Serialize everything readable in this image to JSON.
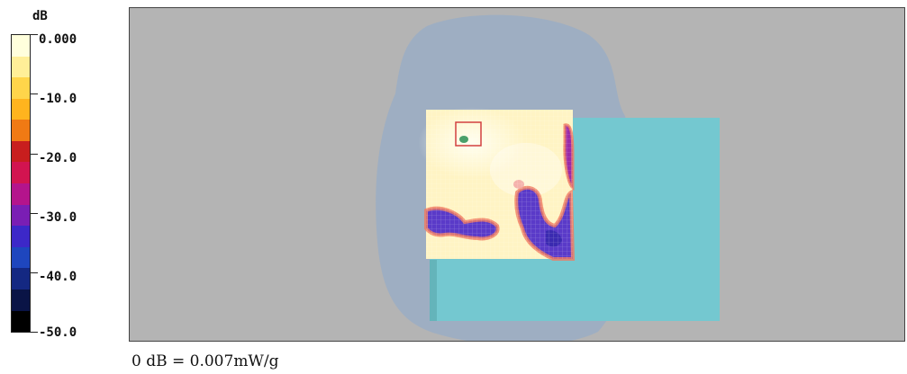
{
  "legend": {
    "unit": "dB",
    "ticks": [
      "0.000",
      "-10.0",
      "-20.0",
      "-30.0",
      "-40.0",
      "-50.0"
    ],
    "colors": [
      "#ffffdc",
      "#ffef98",
      "#ffd54a",
      "#ffb41e",
      "#f07a14",
      "#c81e1e",
      "#d21450",
      "#b4148c",
      "#7a1eb4",
      "#3c28c8",
      "#1e46be",
      "#142882",
      "#0a1446",
      "#000000"
    ]
  },
  "reference_note": "0 dB = 0.007mW/g",
  "colors": {
    "background": "#b4b4b4",
    "phantom_region": "#9eaec2",
    "device_body": "#74c8d0",
    "scan_area": "#fff4c4",
    "peak_marker": "#d24040"
  }
}
